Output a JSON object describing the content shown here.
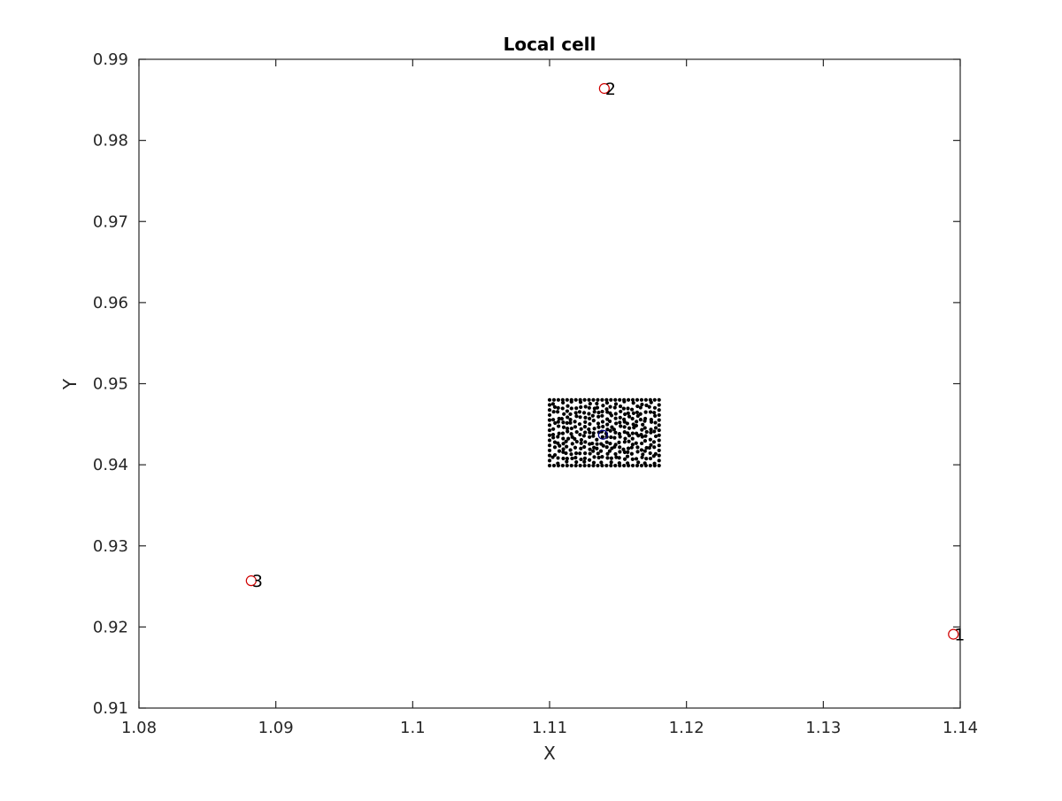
{
  "chart_data": {
    "type": "scatter",
    "title": "Local cell",
    "xlabel": "X",
    "ylabel": "Y",
    "xlim": [
      1.08,
      1.14
    ],
    "ylim": [
      0.91,
      0.99
    ],
    "xticks": [
      "1.08",
      "1.09",
      "1.1",
      "1.11",
      "1.12",
      "1.13",
      "1.14"
    ],
    "yticks": [
      "0.91",
      "0.92",
      "0.93",
      "0.94",
      "0.95",
      "0.96",
      "0.97",
      "0.98",
      "0.99"
    ],
    "grid": false,
    "colors": {
      "vertex_marker": "#d00000",
      "center_marker": "#000080",
      "points": "#000000",
      "axes": "#262626"
    },
    "vertices": [
      {
        "label": "1",
        "x": 1.1395,
        "y": 0.9191
      },
      {
        "label": "2",
        "x": 1.114,
        "y": 0.9864
      },
      {
        "label": "3",
        "x": 1.0882,
        "y": 0.9257
      }
    ],
    "center": {
      "x": 1.1139,
      "y": 0.9437
    },
    "point_cloud": {
      "x_range": [
        1.11,
        1.118
      ],
      "y_range": [
        0.9399,
        0.948
      ],
      "columns": 26,
      "rows": 14
    }
  }
}
